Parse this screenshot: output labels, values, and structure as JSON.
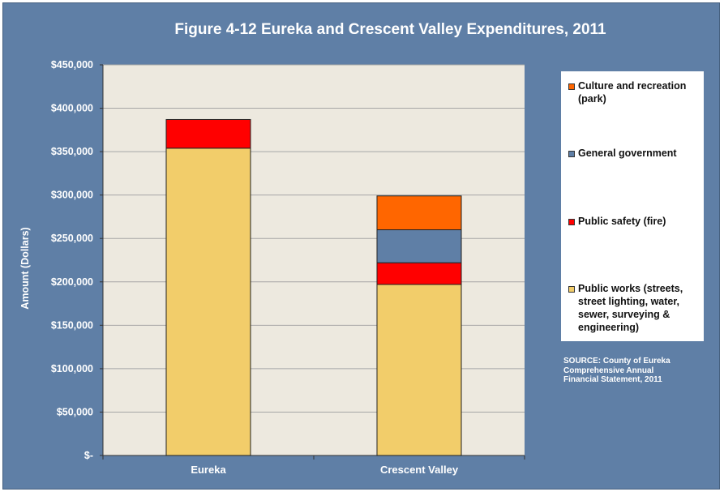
{
  "chart_data": {
    "type": "bar",
    "stacked": true,
    "title": "Figure 4-12 Eureka and Crescent Valley Expenditures, 2011",
    "ylabel": "Amount (Dollars)",
    "xlabel": "",
    "ylim": [
      0,
      450000
    ],
    "yticks": [
      "$-",
      "$50,000",
      "$100,000",
      "$150,000",
      "$200,000",
      "$250,000",
      "$300,000",
      "$350,000",
      "$400,000",
      "$450,000"
    ],
    "categories": [
      "Eureka",
      "Crescent Valley"
    ],
    "series": [
      {
        "name": "Public works (streets, street lighting, water, sewer, surveying & engineering)",
        "color": "#f2cd6a",
        "values": [
          354000,
          197000
        ]
      },
      {
        "name": "Public safety (fire)",
        "color": "#ff0000",
        "values": [
          33000,
          25000
        ]
      },
      {
        "name": "General government",
        "color": "#5f7fa6",
        "values": [
          0,
          38000
        ]
      },
      {
        "name": "Culture and recreation (park)",
        "color": "#ff6600",
        "values": [
          0,
          39000
        ]
      }
    ],
    "legend": {
      "position": "right",
      "items": [
        {
          "label": "Culture and recreation (park)",
          "color": "#ff6600"
        },
        {
          "label": "General government",
          "color": "#5f7fa6"
        },
        {
          "label": "Public safety (fire)",
          "color": "#ff0000"
        },
        {
          "label": "Public works (streets, street lighting, water, sewer, surveying & engineering)",
          "color": "#f2cd6a"
        }
      ]
    },
    "grid": true,
    "plot_background": "#ede9df",
    "source_note": "SOURCE: County of Eureka Comprehensive Annual Financial Statement, 2011"
  }
}
